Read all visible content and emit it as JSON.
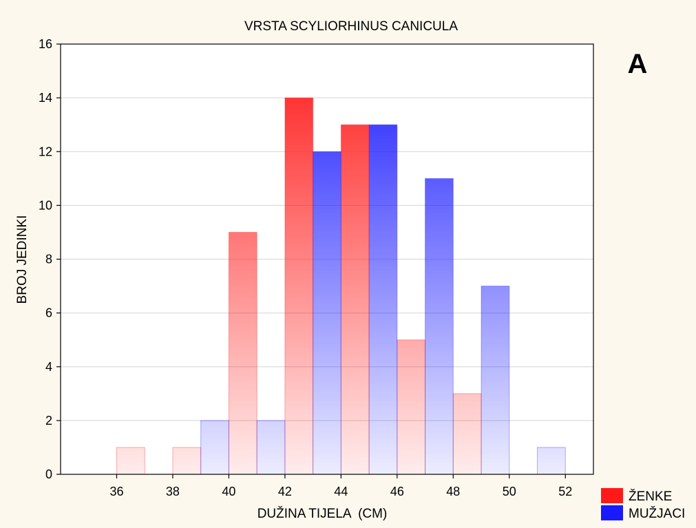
{
  "chart_data": {
    "type": "bar",
    "title": "VRSTA SCYLIORHINUS CANICULA",
    "panel_label": "A",
    "xlabel": "DUŽINA TIJELA  (CM)",
    "ylabel": "BROJ JEDINKI",
    "xlim": [
      34,
      53
    ],
    "ylim": [
      0,
      16
    ],
    "x_ticks": [
      36,
      38,
      40,
      42,
      44,
      46,
      48,
      50,
      52
    ],
    "y_ticks": [
      0,
      2,
      4,
      6,
      8,
      10,
      12,
      14,
      16
    ],
    "grid": true,
    "legend_position": "bottom-right",
    "series": [
      {
        "name": "ŽENKE",
        "color": "#ff1a1a",
        "bars": [
          {
            "x": 36,
            "value": 1
          },
          {
            "x": 38,
            "value": 1
          },
          {
            "x": 40,
            "value": 9
          },
          {
            "x": 42,
            "value": 14
          },
          {
            "x": 44,
            "value": 13
          },
          {
            "x": 46,
            "value": 5
          },
          {
            "x": 48,
            "value": 3
          }
        ]
      },
      {
        "name": "MUŽJACI",
        "color": "#1a1aff",
        "bars": [
          {
            "x": 39,
            "value": 2
          },
          {
            "x": 41,
            "value": 2
          },
          {
            "x": 43,
            "value": 12
          },
          {
            "x": 45,
            "value": 13
          },
          {
            "x": 47,
            "value": 11
          },
          {
            "x": 49,
            "value": 7
          },
          {
            "x": 51,
            "value": 1
          }
        ]
      }
    ]
  }
}
